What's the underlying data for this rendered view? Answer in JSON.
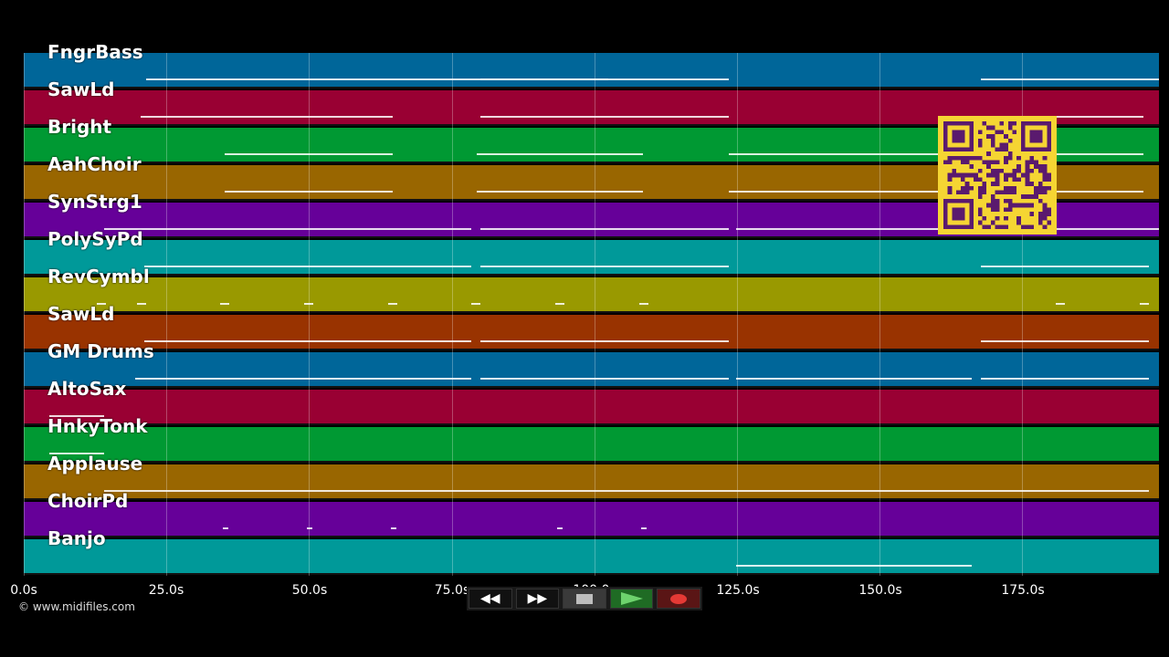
{
  "tracks": [
    {
      "name": "FngrBass",
      "color": "#006699"
    },
    {
      "name": "SawLd",
      "color": "#990033"
    },
    {
      "name": "Bright",
      "color": "#009933"
    },
    {
      "name": "AahChoir",
      "color": "#996600"
    },
    {
      "name": "SynStrg1",
      "color": "#660099"
    },
    {
      "name": "PolySyPd",
      "color": "#009999"
    },
    {
      "name": "RevCymbl",
      "color": "#999900"
    },
    {
      "name": "SawLd",
      "color": "#993300"
    },
    {
      "name": "GM Drums",
      "color": "#006699"
    },
    {
      "name": "AltoSax",
      "color": "#990033"
    },
    {
      "name": "HnkyTonk",
      "color": "#009933"
    },
    {
      "name": "Applause",
      "color": "#996600"
    },
    {
      "name": "ChoirPd",
      "color": "#660099"
    },
    {
      "name": "Banjo",
      "color": "#009999"
    }
  ],
  "timeline": {
    "ticks": [
      "0.0s",
      "25.0s",
      "50.0s",
      "75.0s",
      "100.0s",
      "125.0s",
      "150.0s",
      "175.0s"
    ]
  },
  "copyright": "© www.midifiles.com",
  "transport": {
    "rewind_icon": "rewind-icon",
    "forward_icon": "fast-forward-icon",
    "stop_icon": "stop-icon",
    "play_icon": "play-icon",
    "record_icon": "record-icon"
  },
  "colors": {
    "background": "#000000",
    "qr": "#f5d533",
    "qr_dark": "#5a1a6e"
  }
}
